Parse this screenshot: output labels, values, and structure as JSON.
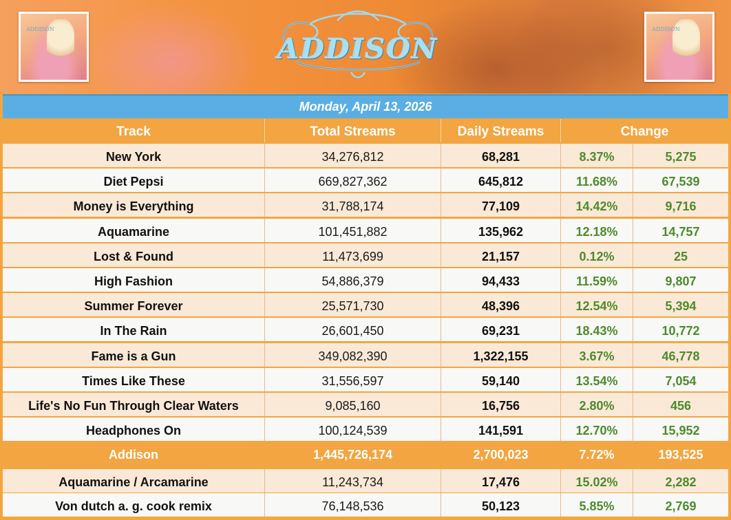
{
  "banner": {
    "wordmark": "ADDISON",
    "cover_label": "ADDISON"
  },
  "date": "Monday, April 13, 2026",
  "headers": {
    "track": "Track",
    "total_streams": "Total Streams",
    "daily_streams": "Daily Streams",
    "change": "Change"
  },
  "tracks": [
    {
      "track": "New York",
      "total": "34,276,812",
      "daily": "68,281",
      "pct": "8.37%",
      "abs": "5,275"
    },
    {
      "track": "Diet Pepsi",
      "total": "669,827,362",
      "daily": "645,812",
      "pct": "11.68%",
      "abs": "67,539"
    },
    {
      "track": "Money is Everything",
      "total": "31,788,174",
      "daily": "77,109",
      "pct": "14.42%",
      "abs": "9,716"
    },
    {
      "track": "Aquamarine",
      "total": "101,451,882",
      "daily": "135,962",
      "pct": "12.18%",
      "abs": "14,757"
    },
    {
      "track": "Lost & Found",
      "total": "11,473,699",
      "daily": "21,157",
      "pct": "0.12%",
      "abs": "25"
    },
    {
      "track": "High Fashion",
      "total": "54,886,379",
      "daily": "94,433",
      "pct": "11.59%",
      "abs": "9,807"
    },
    {
      "track": "Summer Forever",
      "total": "25,571,730",
      "daily": "48,396",
      "pct": "12.54%",
      "abs": "5,394"
    },
    {
      "track": "In The Rain",
      "total": "26,601,450",
      "daily": "69,231",
      "pct": "18.43%",
      "abs": "10,772"
    },
    {
      "track": "Fame is a Gun",
      "total": "349,082,390",
      "daily": "1,322,155",
      "pct": "3.67%",
      "abs": "46,778"
    },
    {
      "track": "Times Like These",
      "total": "31,556,597",
      "daily": "59,140",
      "pct": "13.54%",
      "abs": "7,054"
    },
    {
      "track": "Life's No Fun Through Clear Waters",
      "total": "9,085,160",
      "daily": "16,756",
      "pct": "2.80%",
      "abs": "456"
    },
    {
      "track": "Headphones On",
      "total": "100,124,539",
      "daily": "141,591",
      "pct": "12.70%",
      "abs": "15,952"
    }
  ],
  "album_total": {
    "track": "Addison",
    "total": "1,445,726,174",
    "daily": "2,700,023",
    "pct": "7.72%",
    "abs": "193,525"
  },
  "extras": [
    {
      "track": "Aquamarine / Arcamarine",
      "total": "11,243,734",
      "daily": "17,476",
      "pct": "15.02%",
      "abs": "2,282"
    },
    {
      "track": "Von dutch a. g. cook remix",
      "total": "76,148,536",
      "daily": "50,123",
      "pct": "5.85%",
      "abs": "2,769"
    }
  ],
  "colors": {
    "background_orange": "#f2a541",
    "date_bar_blue": "#5aaee3",
    "odd_row": "#fae9d7",
    "even_row": "#f8f8f6",
    "change_green": "#4d8a2d"
  }
}
